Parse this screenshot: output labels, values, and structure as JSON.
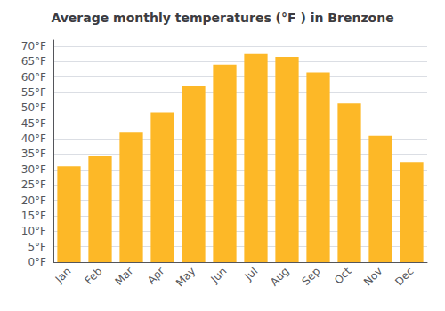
{
  "chart_data": {
    "type": "bar",
    "title": "Average monthly temperatures (°F ) in Brenzone",
    "categories": [
      "Jan",
      "Feb",
      "Mar",
      "Apr",
      "May",
      "Jun",
      "Jul",
      "Aug",
      "Sep",
      "Oct",
      "Nov",
      "Dec"
    ],
    "values": [
      31,
      34.5,
      42,
      48.5,
      57,
      64,
      67.5,
      66.5,
      61.5,
      51.5,
      41,
      32.5
    ],
    "color": "#FDB827",
    "ylim": [
      0,
      72
    ],
    "yticks": [
      {
        "value": 0,
        "label": "0°F"
      },
      {
        "value": 5,
        "label": "5°F"
      },
      {
        "value": 10,
        "label": "10°F"
      },
      {
        "value": 15,
        "label": "15°F"
      },
      {
        "value": 20,
        "label": "20°F"
      },
      {
        "value": 25,
        "label": "25°F"
      },
      {
        "value": 30,
        "label": "30°F"
      },
      {
        "value": 35,
        "label": "35°F"
      },
      {
        "value": 40,
        "label": "40°F"
      },
      {
        "value": 45,
        "label": "45°F"
      },
      {
        "value": 50,
        "label": "50°F"
      },
      {
        "value": 55,
        "label": "55°F"
      },
      {
        "value": 60,
        "label": "60°F"
      },
      {
        "value": 65,
        "label": "65°F"
      },
      {
        "value": 70,
        "label": "70°F"
      }
    ],
    "grid": true
  }
}
